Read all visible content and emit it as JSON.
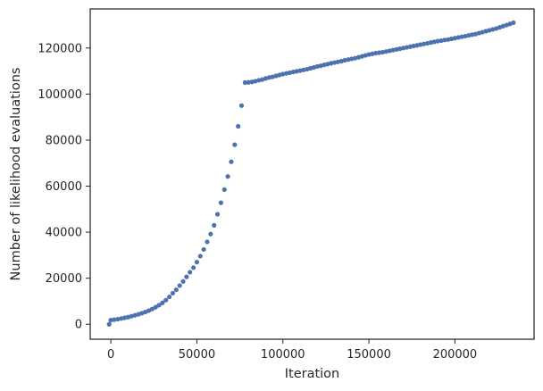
{
  "chart_data": {
    "type": "scatter",
    "title": "",
    "xlabel": "Iteration",
    "ylabel": "Number of likelihood evaluations",
    "xlim": [
      -12000,
      246000
    ],
    "ylim": [
      -6500,
      137000
    ],
    "xticks": [
      0,
      50000,
      100000,
      150000,
      200000
    ],
    "xtick_labels": [
      "0",
      "50000",
      "100000",
      "150000",
      "200000"
    ],
    "yticks": [
      0,
      20000,
      40000,
      60000,
      80000,
      100000,
      120000
    ],
    "ytick_labels": [
      "0",
      "20000",
      "40000",
      "60000",
      "80000",
      "100000",
      "120000"
    ],
    "grid": false,
    "legend": "none",
    "marker_color": "#4c72b0",
    "series": [
      {
        "x": [
          -1000,
          0,
          2000,
          4000,
          6000,
          8000,
          10000,
          12000,
          14000,
          16000,
          18000,
          20000,
          22000,
          24000,
          26000,
          28000,
          30000,
          32000,
          34000,
          36000,
          38000,
          40000,
          42000,
          44000,
          46000,
          48000,
          50000,
          52000,
          54000,
          56000,
          58000,
          60000,
          62000,
          64000,
          66000,
          68000,
          70000,
          72000,
          74000,
          76000,
          78000,
          80000,
          82000,
          84000,
          86000,
          88000,
          90000,
          92000,
          94000,
          96000,
          98000,
          100000,
          102000,
          104000,
          106000,
          108000,
          110000,
          112000,
          114000,
          116000,
          118000,
          120000,
          122000,
          124000,
          126000,
          128000,
          130000,
          132000,
          134000,
          136000,
          138000,
          140000,
          142000,
          144000,
          146000,
          148000,
          150000,
          152000,
          154000,
          156000,
          158000,
          160000,
          162000,
          164000,
          166000,
          168000,
          170000,
          172000,
          174000,
          176000,
          178000,
          180000,
          182000,
          184000,
          186000,
          188000,
          190000,
          192000,
          194000,
          196000,
          198000,
          200000,
          202000,
          204000,
          206000,
          208000,
          210000,
          212000,
          214000,
          216000,
          218000,
          220000,
          222000,
          224000,
          226000,
          228000,
          230000,
          232000,
          234000
        ],
        "y": [
          0,
          1800,
          2000,
          2200,
          2500,
          2800,
          3100,
          3500,
          3900,
          4300,
          4800,
          5300,
          5900,
          6600,
          7400,
          8300,
          9300,
          10500,
          11900,
          13500,
          15000,
          16800,
          18600,
          20600,
          22600,
          24600,
          27000,
          29600,
          32500,
          35800,
          39200,
          43000,
          47800,
          52800,
          58500,
          64200,
          70600,
          78000,
          86000,
          95000,
          105000,
          105100,
          105300,
          105600,
          106000,
          106300,
          106800,
          107200,
          107500,
          107900,
          108300,
          108700,
          109000,
          109300,
          109600,
          109900,
          110200,
          110500,
          110800,
          111200,
          111600,
          112000,
          112300,
          112700,
          113000,
          113400,
          113700,
          114000,
          114300,
          114700,
          115000,
          115300,
          115600,
          116000,
          116400,
          116800,
          117200,
          117500,
          117800,
          118000,
          118200,
          118500,
          118800,
          119100,
          119400,
          119700,
          120000,
          120300,
          120600,
          120900,
          121200,
          121500,
          121800,
          122100,
          122400,
          122700,
          123000,
          123200,
          123500,
          123700,
          124000,
          124300,
          124600,
          124900,
          125200,
          125500,
          125800,
          126100,
          126500,
          126900,
          127300,
          127700,
          128100,
          128500,
          129000,
          129500,
          130000,
          130500,
          131000
        ]
      }
    ]
  }
}
